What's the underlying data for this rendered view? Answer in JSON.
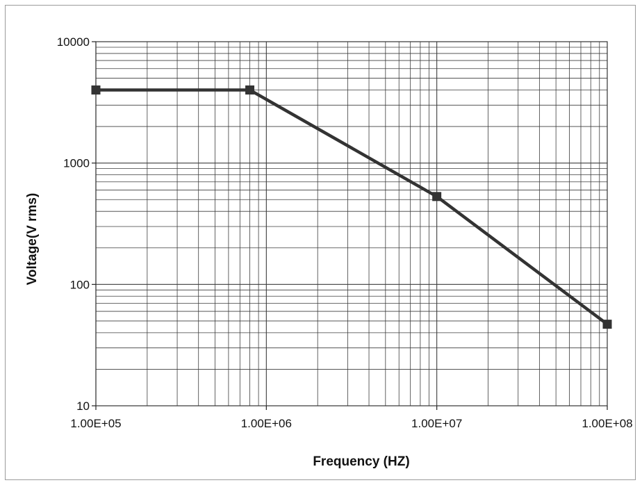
{
  "chart_data": {
    "type": "line",
    "title": "",
    "xlabel": "Frequency (HZ)",
    "ylabel": "Voltage(V rms)",
    "x_scale": "log",
    "y_scale": "log",
    "xlim": [
      100000,
      100000000
    ],
    "ylim": [
      10,
      10000
    ],
    "x_ticks": [
      {
        "value": 100000,
        "label": "1.00E+05"
      },
      {
        "value": 1000000,
        "label": "1.00E+06"
      },
      {
        "value": 10000000,
        "label": "1.00E+07"
      },
      {
        "value": 100000000,
        "label": "1.00E+08"
      }
    ],
    "y_ticks": [
      {
        "value": 10,
        "label": "10"
      },
      {
        "value": 100,
        "label": "100"
      },
      {
        "value": 1000,
        "label": "1000"
      },
      {
        "value": 10000,
        "label": "10000"
      }
    ],
    "grid": true,
    "legend": "none",
    "series": [
      {
        "color": "#333333",
        "marker": "square",
        "points": [
          {
            "x": 100000,
            "y": 4000
          },
          {
            "x": 800000,
            "y": 4000
          },
          {
            "x": 10000000,
            "y": 530
          },
          {
            "x": 100000000,
            "y": 47
          }
        ]
      }
    ]
  }
}
